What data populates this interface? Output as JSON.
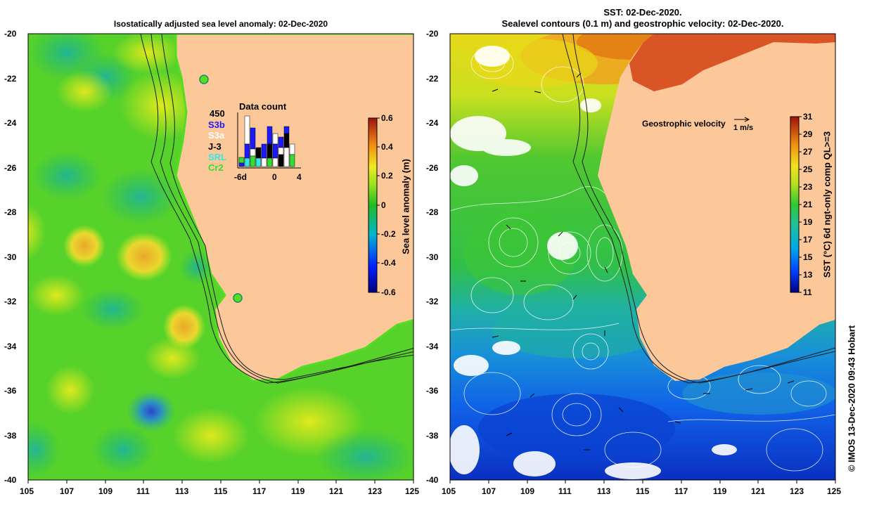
{
  "left_panel": {
    "title": "Isostatically adjusted sea level anomaly: 02-Dec-2020",
    "x_ticks": [
      "105",
      "107",
      "109",
      "111",
      "113",
      "115",
      "117",
      "119",
      "121",
      "123",
      "125"
    ],
    "y_ticks": [
      "-20",
      "-22",
      "-24",
      "-26",
      "-28",
      "-30",
      "-32",
      "-34",
      "-36",
      "-38",
      "-40"
    ],
    "colorbar": {
      "label": "Sea level anomaly (m)",
      "ticks": [
        "0.6",
        "0.4",
        "0.2",
        "0",
        "-0.2",
        "-0.4",
        "-0.6"
      ],
      "range": [
        -0.6,
        0.6
      ]
    },
    "data_count": {
      "title": "Data count",
      "max_label": "450",
      "x_ticks": [
        "-6d",
        "0",
        "4"
      ],
      "legend": [
        {
          "name": "S3b",
          "color": "#1a1aff"
        },
        {
          "name": "S3a",
          "color": "#ffffff"
        },
        {
          "name": "J-3",
          "color": "#000000"
        },
        {
          "name": "SRL",
          "color": "#33e6e6"
        },
        {
          "name": "Cr2",
          "color": "#33dd33"
        }
      ]
    }
  },
  "right_panel": {
    "title_line1": "SST: 02-Dec-2020.",
    "title_line2": "Sealevel contours (0.1 m) and geostrophic velocity: 02-Dec-2020.",
    "x_ticks": [
      "105",
      "107",
      "109",
      "111",
      "113",
      "115",
      "117",
      "119",
      "121",
      "123",
      "125"
    ],
    "y_ticks": [
      "-20",
      "-22",
      "-24",
      "-26",
      "-28",
      "-30",
      "-32",
      "-34",
      "-36",
      "-38",
      "-40"
    ],
    "velocity_key": {
      "label": "Geostrophic velocity",
      "scale": "1 m/s"
    },
    "colorbar": {
      "label": "SST (°C) 6d ngt-only comp QL>=3",
      "ticks": [
        "31",
        "29",
        "27",
        "25",
        "23",
        "21",
        "19",
        "17",
        "15",
        "13",
        "11"
      ],
      "range": [
        11,
        31
      ]
    }
  },
  "credit": "© IMOS 13-Dec-2020 09:43 Hobart",
  "colors": {
    "land": "#fcc89a",
    "coast": "#000000"
  }
}
